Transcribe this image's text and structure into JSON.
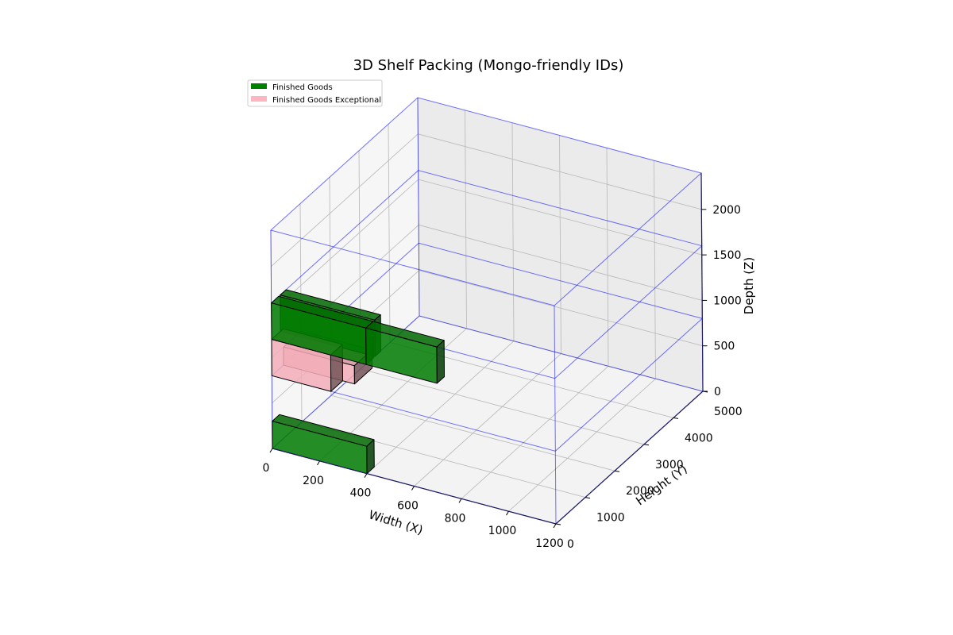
{
  "chart_data": {
    "type": "3d-box",
    "title": "3D Shelf Packing (Mongo-friendly IDs)",
    "xlabel": "Width (X)",
    "ylabel": "Height (Y)",
    "zlabel": "Depth (Z)",
    "xlim": [
      0,
      1200
    ],
    "ylim": [
      0,
      5000
    ],
    "zlim": [
      0,
      2400
    ],
    "xticks": [
      "0",
      "200",
      "400",
      "600",
      "800",
      "1000",
      "1200"
    ],
    "yticks": [
      "0",
      "1000",
      "2000",
      "3000",
      "4000",
      "5000"
    ],
    "zticks": [
      "0",
      "500",
      "1000",
      "1500",
      "2000"
    ],
    "legend_position": "top-left",
    "legend": [
      {
        "name": "Finished Goods",
        "color": "#008000"
      },
      {
        "name": "Finished Goods Exceptional",
        "color": "#ffb6c1"
      }
    ],
    "shelf_outline_color": "#0000ff",
    "shelf": {
      "x": [
        0,
        1200
      ],
      "y": [
        0,
        5000
      ],
      "levels": [
        0,
        800,
        1600,
        2400
      ]
    },
    "boxes": [
      {
        "category": "Finished Goods",
        "x": [
          0,
          400
        ],
        "y": [
          0,
          250
        ],
        "z": [
          0,
          300
        ],
        "color": "#008000"
      },
      {
        "category": "Finished Goods",
        "x": [
          0,
          400
        ],
        "y": [
          300,
          500
        ],
        "z": [
          1200,
          1600
        ],
        "color": "#008000"
      },
      {
        "category": "Finished Goods",
        "x": [
          0,
          400
        ],
        "y": [
          0,
          250
        ],
        "z": [
          1200,
          1600
        ],
        "color": "#008000"
      },
      {
        "category": "Finished Goods",
        "x": [
          400,
          700
        ],
        "y": [
          0,
          250
        ],
        "z": [
          1200,
          1600
        ],
        "color": "#008000"
      },
      {
        "category": "Finished Goods Exceptional",
        "x": [
          0,
          300
        ],
        "y": [
          400,
          1000
        ],
        "z": [
          800,
          1000
        ],
        "color": "#ffb6c1"
      },
      {
        "category": "Finished Goods Exceptional",
        "x": [
          0,
          250
        ],
        "y": [
          0,
          400
        ],
        "z": [
          800,
          1200
        ],
        "color": "#ffb6c1"
      }
    ]
  }
}
